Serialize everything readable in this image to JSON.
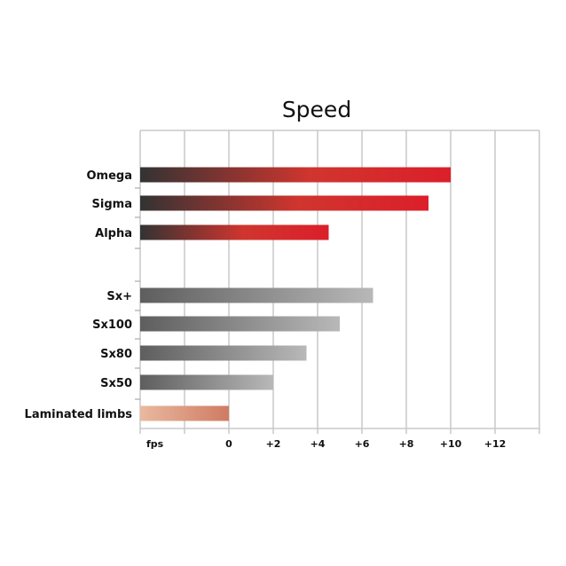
{
  "chart_data": {
    "type": "bar",
    "orientation": "horizontal",
    "title": "Speed",
    "xlabel": "",
    "ylabel": "",
    "unit_label": "fps",
    "xlim": [
      -4,
      14
    ],
    "x_ticks": [
      {
        "value": -4,
        "label": "fps"
      },
      {
        "value": -2,
        "label": ""
      },
      {
        "value": 0,
        "label": "0"
      },
      {
        "value": 2,
        "label": "+2"
      },
      {
        "value": 4,
        "label": "+4"
      },
      {
        "value": 6,
        "label": "+6"
      },
      {
        "value": 8,
        "label": "+8"
      },
      {
        "value": 10,
        "label": "+10"
      },
      {
        "value": 12,
        "label": "+12"
      },
      {
        "value": 14,
        "label": ""
      }
    ],
    "grid": true,
    "categories": [
      "Omega",
      "Sigma",
      "Alpha",
      "",
      "Sx+",
      "Sx100",
      "Sx80",
      "Sx50",
      "Laminated limbs"
    ],
    "values": [
      10,
      9,
      4.5,
      null,
      6.5,
      5,
      3.5,
      2,
      0
    ],
    "bar_groups": [
      "red",
      "red",
      "red",
      null,
      "gray",
      "gray",
      "gray",
      "gray",
      "tan"
    ],
    "colors": {
      "red": [
        "#333333",
        "#db1f2a"
      ],
      "gray": [
        "#5e5e5e",
        "#b8b8b8"
      ],
      "tan": [
        "#e9b9a0",
        "#cf7b62"
      ],
      "grid": "#c8c8c8"
    }
  }
}
